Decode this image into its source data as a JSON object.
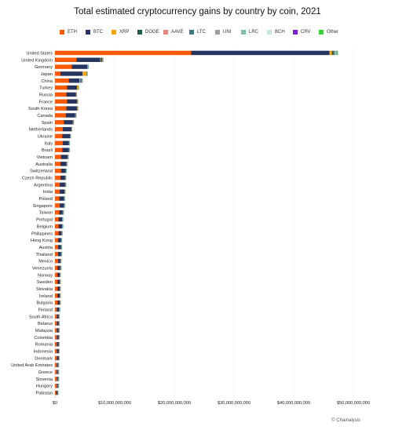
{
  "chart_data": {
    "type": "bar",
    "orientation": "horizontal",
    "stacked": true,
    "title": "Total estimated cryptocurrency gains by country by coin, 2021",
    "xlabel": "",
    "ylabel": "",
    "xlim": [
      0,
      55000000000
    ],
    "xticks": [
      0,
      10000000000,
      20000000000,
      30000000000,
      40000000000,
      50000000000
    ],
    "xtick_labels": [
      "$0",
      "$10,000,000,000",
      "$20,000,000,000",
      "$30,000,000,000",
      "$40,000,000,000",
      "$50,000,000,000"
    ],
    "grid": "vertical",
    "legend_position": "top",
    "categories": [
      "United States",
      "United Kingdom",
      "Germany",
      "Japan",
      "China",
      "Turkey",
      "Russia",
      "France",
      "South Korea",
      "Canada",
      "Spain",
      "Netherlands",
      "Ukraine",
      "Italy",
      "Brazil",
      "Vietnam",
      "Australia",
      "Switzerland",
      "Czech Republic",
      "Argentina",
      "India",
      "Poland",
      "Singapore",
      "Taiwan",
      "Portugal",
      "Belgium",
      "Philippines",
      "Hong Kong",
      "Austria",
      "Thailand",
      "Mexico",
      "Venezuela",
      "Norway",
      "Sweden",
      "Slovakia",
      "Ireland",
      "Bulgaria",
      "Finland",
      "South Africa",
      "Belarus",
      "Malaysia",
      "Colombia",
      "Romania",
      "Indonesia",
      "Denmark",
      "United Arab Emirates",
      "Greece",
      "Slovenia",
      "Hungary",
      "Pakistan"
    ],
    "series": [
      {
        "name": "ETH",
        "color": "#ff5a00",
        "values": [
          22800000000,
          3600000000,
          2800000000,
          900000000,
          2300000000,
          2000000000,
          1900000000,
          2000000000,
          1900000000,
          1800000000,
          1500000000,
          1300000000,
          1200000000,
          1300000000,
          1200000000,
          1000000000,
          900000000,
          1000000000,
          900000000,
          800000000,
          800000000,
          700000000,
          800000000,
          700000000,
          600000000,
          600000000,
          600000000,
          500000000,
          500000000,
          500000000,
          500000000,
          400000000,
          400000000,
          400000000,
          400000000,
          400000000,
          400000000,
          300000000,
          300000000,
          300000000,
          300000000,
          300000000,
          300000000,
          300000000,
          300000000,
          300000000,
          300000000,
          300000000,
          300000000,
          200000000
        ]
      },
      {
        "name": "BTC",
        "color": "#26355f",
        "values": [
          23200000000,
          4000000000,
          2600000000,
          3700000000,
          1800000000,
          1700000000,
          1600000000,
          1700000000,
          1800000000,
          1600000000,
          1500000000,
          1400000000,
          1300000000,
          1000000000,
          1100000000,
          1100000000,
          1000000000,
          800000000,
          800000000,
          900000000,
          800000000,
          800000000,
          700000000,
          600000000,
          600000000,
          600000000,
          500000000,
          500000000,
          500000000,
          500000000,
          400000000,
          500000000,
          400000000,
          400000000,
          400000000,
          400000000,
          400000000,
          400000000,
          300000000,
          300000000,
          300000000,
          300000000,
          300000000,
          300000000,
          300000000,
          200000000,
          200000000,
          200000000,
          200000000,
          200000000
        ]
      },
      {
        "name": "XRP",
        "color": "#f7a600",
        "values": [
          400000000,
          80000000,
          60000000,
          700000000,
          80000000,
          150000000,
          30000000,
          30000000,
          40000000,
          30000000,
          20000000,
          20000000,
          20000000,
          20000000,
          20000000,
          20000000,
          20000000,
          20000000,
          20000000,
          20000000,
          20000000,
          20000000,
          20000000,
          20000000,
          20000000,
          20000000,
          20000000,
          20000000,
          20000000,
          20000000,
          20000000,
          20000000,
          20000000,
          20000000,
          20000000,
          20000000,
          20000000,
          20000000,
          20000000,
          20000000,
          20000000,
          20000000,
          20000000,
          20000000,
          20000000,
          20000000,
          20000000,
          20000000,
          20000000,
          20000000
        ]
      },
      {
        "name": "DOGE",
        "color": "#1b5e4a",
        "values": [
          300000000,
          250000000,
          40000000,
          40000000,
          60000000,
          30000000,
          20000000,
          20000000,
          20000000,
          30000000,
          20000000,
          20000000,
          20000000,
          20000000,
          20000000,
          20000000,
          20000000,
          20000000,
          20000000,
          20000000,
          20000000,
          20000000,
          20000000,
          20000000,
          20000000,
          20000000,
          20000000,
          20000000,
          20000000,
          20000000,
          20000000,
          20000000,
          20000000,
          20000000,
          20000000,
          20000000,
          20000000,
          20000000,
          20000000,
          20000000,
          20000000,
          20000000,
          20000000,
          20000000,
          20000000,
          20000000,
          20000000,
          20000000,
          20000000,
          20000000
        ]
      },
      {
        "name": "AAVE",
        "color": "#e8847e",
        "values": [
          50000000,
          20000000,
          10000000,
          10000000,
          10000000,
          10000000,
          10000000,
          10000000,
          10000000,
          10000000,
          10000000,
          10000000,
          10000000,
          10000000,
          10000000,
          10000000,
          10000000,
          10000000,
          10000000,
          10000000,
          10000000,
          10000000,
          10000000,
          10000000,
          10000000,
          10000000,
          10000000,
          10000000,
          10000000,
          10000000,
          10000000,
          10000000,
          10000000,
          10000000,
          10000000,
          10000000,
          10000000,
          10000000,
          10000000,
          10000000,
          10000000,
          10000000,
          10000000,
          10000000,
          10000000,
          10000000,
          10000000,
          10000000,
          10000000,
          10000000
        ]
      },
      {
        "name": "LTC",
        "color": "#3b7a86",
        "values": [
          150000000,
          40000000,
          20000000,
          20000000,
          250000000,
          20000000,
          20000000,
          20000000,
          20000000,
          20000000,
          20000000,
          20000000,
          20000000,
          20000000,
          20000000,
          20000000,
          20000000,
          20000000,
          20000000,
          20000000,
          20000000,
          20000000,
          20000000,
          20000000,
          20000000,
          20000000,
          20000000,
          20000000,
          20000000,
          20000000,
          20000000,
          20000000,
          20000000,
          20000000,
          20000000,
          20000000,
          20000000,
          20000000,
          20000000,
          20000000,
          20000000,
          20000000,
          20000000,
          20000000,
          20000000,
          20000000,
          20000000,
          20000000,
          20000000,
          20000000
        ]
      },
      {
        "name": "UNI",
        "color": "#9e9e9e",
        "values": [
          100000000,
          30000000,
          20000000,
          20000000,
          30000000,
          20000000,
          20000000,
          20000000,
          20000000,
          20000000,
          20000000,
          20000000,
          20000000,
          20000000,
          20000000,
          20000000,
          20000000,
          20000000,
          20000000,
          20000000,
          20000000,
          20000000,
          20000000,
          20000000,
          20000000,
          20000000,
          20000000,
          20000000,
          20000000,
          20000000,
          20000000,
          20000000,
          20000000,
          20000000,
          20000000,
          20000000,
          20000000,
          20000000,
          20000000,
          20000000,
          20000000,
          20000000,
          20000000,
          20000000,
          20000000,
          20000000,
          20000000,
          20000000,
          20000000,
          20000000
        ]
      },
      {
        "name": "LRC",
        "color": "#7dbfa7",
        "values": [
          50000000,
          10000000,
          10000000,
          10000000,
          10000000,
          10000000,
          10000000,
          10000000,
          10000000,
          10000000,
          10000000,
          10000000,
          10000000,
          10000000,
          10000000,
          10000000,
          10000000,
          10000000,
          10000000,
          10000000,
          10000000,
          10000000,
          10000000,
          10000000,
          10000000,
          10000000,
          10000000,
          10000000,
          10000000,
          10000000,
          10000000,
          10000000,
          10000000,
          10000000,
          10000000,
          10000000,
          10000000,
          10000000,
          10000000,
          10000000,
          10000000,
          10000000,
          10000000,
          10000000,
          10000000,
          10000000,
          10000000,
          10000000,
          10000000,
          10000000
        ]
      },
      {
        "name": "BCH",
        "color": "#c6e8e0",
        "values": [
          50000000,
          10000000,
          10000000,
          10000000,
          20000000,
          10000000,
          10000000,
          10000000,
          10000000,
          10000000,
          10000000,
          10000000,
          10000000,
          10000000,
          10000000,
          10000000,
          10000000,
          10000000,
          10000000,
          10000000,
          10000000,
          10000000,
          10000000,
          10000000,
          10000000,
          10000000,
          10000000,
          10000000,
          10000000,
          10000000,
          10000000,
          10000000,
          10000000,
          10000000,
          10000000,
          10000000,
          10000000,
          10000000,
          10000000,
          10000000,
          10000000,
          10000000,
          10000000,
          10000000,
          10000000,
          10000000,
          10000000,
          10000000,
          10000000,
          10000000
        ]
      },
      {
        "name": "CRV",
        "color": "#7b1fd6",
        "values": [
          50000000,
          10000000,
          10000000,
          10000000,
          10000000,
          10000000,
          10000000,
          10000000,
          10000000,
          10000000,
          10000000,
          10000000,
          10000000,
          10000000,
          10000000,
          10000000,
          10000000,
          10000000,
          10000000,
          10000000,
          10000000,
          10000000,
          10000000,
          10000000,
          10000000,
          10000000,
          10000000,
          10000000,
          10000000,
          10000000,
          10000000,
          10000000,
          10000000,
          10000000,
          10000000,
          10000000,
          10000000,
          10000000,
          10000000,
          10000000,
          10000000,
          10000000,
          10000000,
          10000000,
          10000000,
          10000000,
          10000000,
          10000000,
          10000000,
          10000000
        ]
      },
      {
        "name": "Other",
        "color": "#3ad33a",
        "values": [
          250000000,
          60000000,
          40000000,
          40000000,
          80000000,
          40000000,
          30000000,
          30000000,
          30000000,
          30000000,
          20000000,
          20000000,
          20000000,
          20000000,
          20000000,
          20000000,
          20000000,
          20000000,
          20000000,
          20000000,
          20000000,
          20000000,
          20000000,
          20000000,
          20000000,
          20000000,
          20000000,
          20000000,
          20000000,
          20000000,
          20000000,
          20000000,
          20000000,
          20000000,
          20000000,
          20000000,
          20000000,
          20000000,
          20000000,
          20000000,
          20000000,
          20000000,
          20000000,
          20000000,
          20000000,
          20000000,
          20000000,
          20000000,
          20000000,
          20000000
        ]
      }
    ]
  },
  "source": "© Chainalysis"
}
